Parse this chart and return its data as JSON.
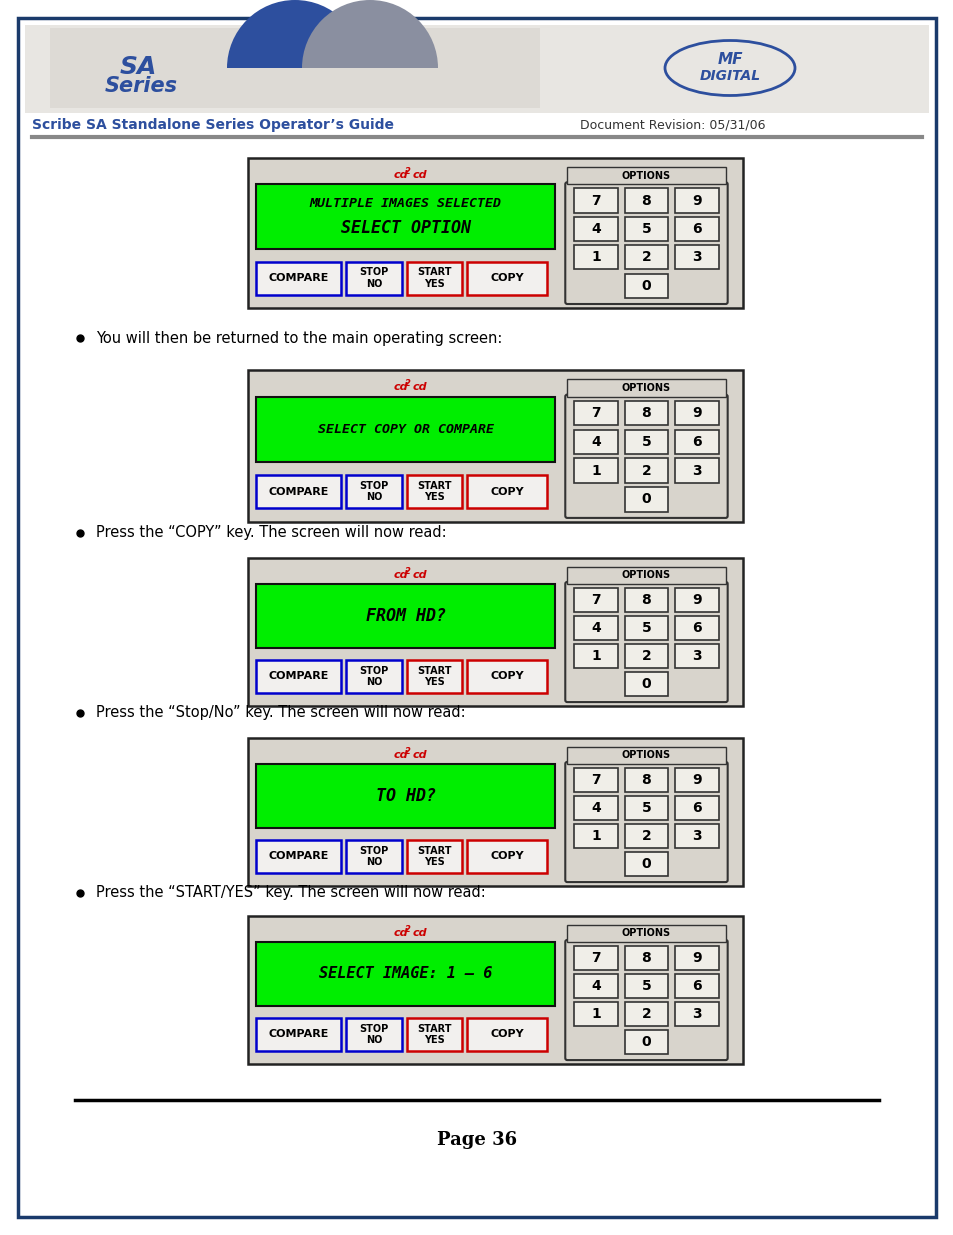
{
  "page_border_color": "#1a3a6b",
  "bg_color": "#ffffff",
  "header_bg": "#e0ddd8",
  "header_title": "Scribe SA Standalone Series Operator’s Guide",
  "header_doc_rev": "Document Revision: 05/31/06",
  "page_number": "Page 36",
  "panel_bg": "#d8d4cc",
  "panel_border": "#222222",
  "screen_bg_green": "#00ee00",
  "screen_border": "#111111",
  "options_label": "OPTIONS",
  "cd2cd_color": "#cc0000",
  "panel0_screen_lines": [
    "MULTIPLE IMAGES SELECTED",
    "SELECT OPTION"
  ],
  "panel1_screen_lines": [
    "SELECT COPY OR COMPARE"
  ],
  "panel2_screen_lines": [
    "FROM HD?"
  ],
  "panel3_screen_lines": [
    "TO HD?"
  ],
  "panel4_screen_lines": [
    "SELECT IMAGE: 1 – 6"
  ],
  "bullet1": "You will then be returned to the main operating screen:",
  "bullet2": "Press the “COPY” key. The screen will now read:",
  "bullet3": "Press the “Stop/No” key. The screen will now read:",
  "bullet4": "Press the “START/YES” key. The screen will now read:"
}
